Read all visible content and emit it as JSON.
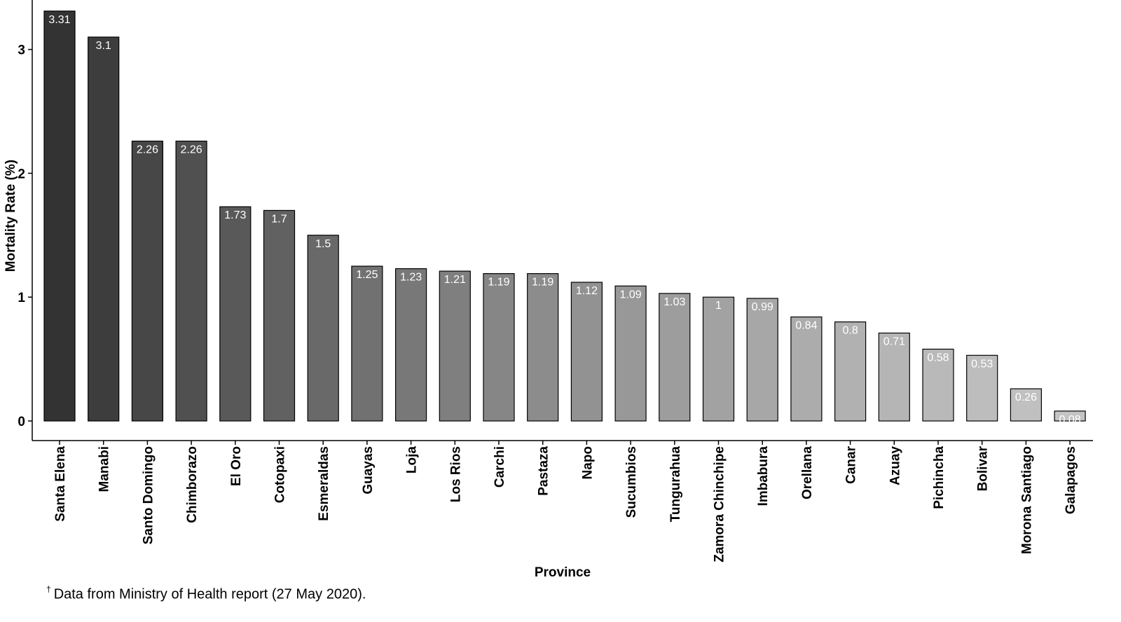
{
  "chart_data": {
    "type": "bar",
    "xlabel": "Province",
    "ylabel": "Mortality Rate (%)",
    "ylim": [
      0,
      3.5
    ],
    "yticks": [
      0,
      1,
      2,
      3
    ],
    "categories": [
      "Santa Elena",
      "Manabi",
      "Santo Domingo",
      "Chimborazo",
      "El Oro",
      "Cotopaxi",
      "Esmeraldas",
      "Guayas",
      "Loja",
      "Los Rios",
      "Carchi",
      "Pastaza",
      "Napo",
      "Sucumbios",
      "Tungurahua",
      "Zamora Chinchipe",
      "Imbabura",
      "Orellana",
      "Canar",
      "Azuay",
      "Pichincha",
      "Bolivar",
      "Morona Santiago",
      "Galapagos"
    ],
    "values": [
      3.31,
      3.1,
      2.26,
      2.26,
      1.73,
      1.7,
      1.5,
      1.25,
      1.23,
      1.21,
      1.19,
      1.19,
      1.12,
      1.09,
      1.03,
      1,
      0.99,
      0.84,
      0.8,
      0.71,
      0.58,
      0.53,
      0.26,
      0.08
    ],
    "value_labels": [
      "3.31",
      "3.1",
      "2.26",
      "2.26",
      "1.73",
      "1.7",
      "1.5",
      "1.25",
      "1.23",
      "1.21",
      "1.19",
      "1.19",
      "1.12",
      "1.09",
      "1.03",
      "1",
      "0.99",
      "0.84",
      "0.8",
      "0.71",
      "0.58",
      "0.53",
      "0.26",
      "0.08"
    ],
    "bar_colors": [
      "#333333",
      "#3d3d3d",
      "#474747",
      "#505050",
      "#595959",
      "#616161",
      "#696969",
      "#717171",
      "#787878",
      "#7f7f7f",
      "#868686",
      "#8c8c8c",
      "#929292",
      "#989898",
      "#9d9d9d",
      "#a2a2a2",
      "#a7a7a7",
      "#acacac",
      "#b1b1b1",
      "#b5b5b5",
      "#b9b9b9",
      "#bdbdbd",
      "#c0c0c0",
      "#c4c4c4"
    ],
    "grid": false,
    "legend": "none"
  },
  "footnote": {
    "symbol": "†",
    "text": "Data from Ministry of Health report (27 May 2020)."
  }
}
